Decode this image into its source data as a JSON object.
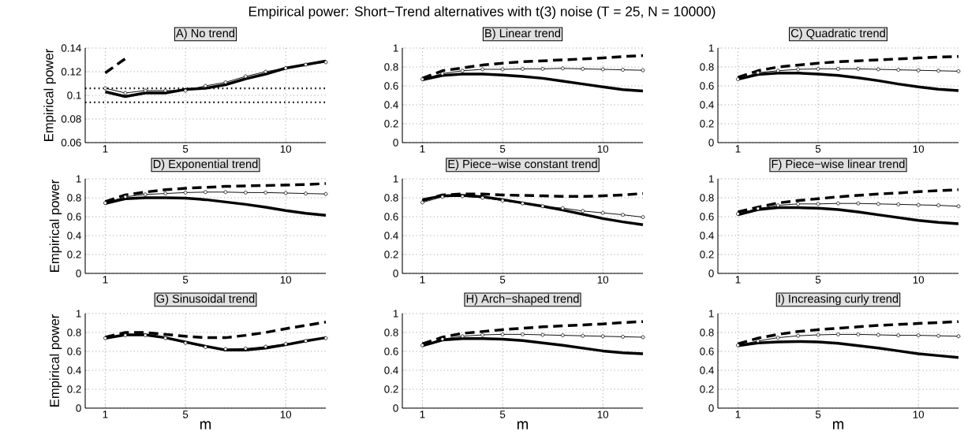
{
  "chart_data": [
    {
      "type": "line",
      "title": "A) No trend",
      "ylabel": "Empirical power",
      "annotations": [
        "Empirical power: Short−Trend alternatives with t(3) noise (T = 25, N = 10000)"
      ],
      "x": [
        1,
        2,
        3,
        4,
        5,
        6,
        7,
        8,
        9,
        10,
        11,
        12
      ],
      "xlim": [
        0,
        12
      ],
      "xticks": [
        1,
        5,
        10
      ],
      "ylim": [
        0.06,
        0.14
      ],
      "yticks": [
        0.06,
        0.08,
        0.1,
        0.12,
        0.14
      ],
      "grid": true,
      "ref_lines": [
        {
          "axis": "y",
          "value": 0.0941,
          "line_style": "dotted",
          "color": "#000000"
        },
        {
          "axis": "y",
          "value": 0.1059,
          "line_style": "dotted",
          "color": "#000000"
        }
      ],
      "series": [
        {
          "color": "#000000",
          "line_style": "dashed",
          "marker": "none",
          "values": [
            0.119,
            0.131,
            null,
            null,
            null,
            null,
            null,
            null,
            null,
            null,
            null,
            null
          ]
        },
        {
          "color": "#000000",
          "line_style": "solid",
          "marker": "circle",
          "values": [
            0.106,
            0.102,
            0.104,
            0.104,
            0.104,
            0.108,
            0.111,
            0.116,
            0.12,
            0.123,
            0.126,
            0.128
          ]
        },
        {
          "color": "#000000",
          "line_style": "solid",
          "marker": "none",
          "values": [
            0.103,
            0.099,
            0.102,
            0.102,
            0.105,
            0.106,
            0.109,
            0.114,
            0.118,
            0.123,
            0.126,
            0.129
          ]
        }
      ]
    },
    {
      "type": "line",
      "title": "B) Linear trend",
      "x": [
        1,
        2,
        3,
        4,
        5,
        6,
        7,
        8,
        9,
        10,
        11,
        12
      ],
      "xlim": [
        0,
        12
      ],
      "xticks": [
        1,
        5,
        10
      ],
      "ylim": [
        0,
        1
      ],
      "yticks": [
        0,
        0.2,
        0.4,
        0.6,
        0.8,
        1
      ],
      "grid": true,
      "series": [
        {
          "color": "#000000",
          "line_style": "dashed",
          "marker": "none",
          "values": [
            0.68,
            0.76,
            0.79,
            0.82,
            0.84,
            0.855,
            0.865,
            0.875,
            0.885,
            0.895,
            0.91,
            0.92
          ]
        },
        {
          "color": "#000000",
          "line_style": "solid",
          "marker": "circle",
          "values": [
            0.67,
            0.73,
            0.76,
            0.775,
            0.775,
            0.78,
            0.78,
            0.785,
            0.78,
            0.775,
            0.77,
            0.765
          ]
        },
        {
          "color": "#000000",
          "line_style": "solid",
          "marker": "none",
          "values": [
            0.665,
            0.71,
            0.725,
            0.725,
            0.715,
            0.7,
            0.68,
            0.65,
            0.62,
            0.59,
            0.56,
            0.545
          ]
        }
      ]
    },
    {
      "type": "line",
      "title": "C) Quadratic trend",
      "x": [
        1,
        2,
        3,
        4,
        5,
        6,
        7,
        8,
        9,
        10,
        11,
        12
      ],
      "xlim": [
        0,
        12
      ],
      "xticks": [
        1,
        5,
        10
      ],
      "ylim": [
        0,
        1
      ],
      "yticks": [
        0,
        0.2,
        0.4,
        0.6,
        0.8,
        1
      ],
      "grid": true,
      "series": [
        {
          "color": "#000000",
          "line_style": "dashed",
          "marker": "none",
          "values": [
            0.69,
            0.76,
            0.8,
            0.82,
            0.84,
            0.855,
            0.865,
            0.875,
            0.885,
            0.895,
            0.905,
            0.91
          ]
        },
        {
          "color": "#000000",
          "line_style": "solid",
          "marker": "circle",
          "values": [
            0.67,
            0.74,
            0.76,
            0.775,
            0.78,
            0.78,
            0.78,
            0.775,
            0.77,
            0.765,
            0.76,
            0.755
          ]
        },
        {
          "color": "#000000",
          "line_style": "solid",
          "marker": "none",
          "values": [
            0.67,
            0.72,
            0.735,
            0.735,
            0.725,
            0.71,
            0.685,
            0.655,
            0.62,
            0.59,
            0.565,
            0.55
          ]
        }
      ]
    },
    {
      "type": "line",
      "title": "D) Exponential trend",
      "ylabel": "Empirical power",
      "x": [
        1,
        2,
        3,
        4,
        5,
        6,
        7,
        8,
        9,
        10,
        11,
        12
      ],
      "xlim": [
        0,
        12
      ],
      "xticks": [
        1,
        5,
        10
      ],
      "ylim": [
        0,
        1
      ],
      "yticks": [
        0,
        0.2,
        0.4,
        0.6,
        0.8,
        1
      ],
      "grid": true,
      "series": [
        {
          "color": "#000000",
          "line_style": "dashed",
          "marker": "none",
          "values": [
            0.76,
            0.83,
            0.86,
            0.885,
            0.9,
            0.91,
            0.92,
            0.925,
            0.93,
            0.935,
            0.94,
            0.95
          ]
        },
        {
          "color": "#000000",
          "line_style": "solid",
          "marker": "circle",
          "values": [
            0.745,
            0.81,
            0.835,
            0.845,
            0.855,
            0.86,
            0.86,
            0.855,
            0.855,
            0.85,
            0.845,
            0.84
          ]
        },
        {
          "color": "#000000",
          "line_style": "solid",
          "marker": "none",
          "values": [
            0.74,
            0.79,
            0.8,
            0.8,
            0.795,
            0.78,
            0.755,
            0.73,
            0.7,
            0.665,
            0.635,
            0.615
          ]
        }
      ]
    },
    {
      "type": "line",
      "title": "E) Piece−wise constant trend",
      "x": [
        1,
        2,
        3,
        4,
        5,
        6,
        7,
        8,
        9,
        10,
        11,
        12
      ],
      "xlim": [
        0,
        12
      ],
      "xticks": [
        1,
        5,
        10
      ],
      "ylim": [
        0,
        1
      ],
      "yticks": [
        0,
        0.2,
        0.4,
        0.6,
        0.8,
        1
      ],
      "grid": true,
      "series": [
        {
          "color": "#000000",
          "line_style": "dashed",
          "marker": "none",
          "values": [
            0.77,
            0.83,
            0.84,
            0.84,
            0.83,
            0.825,
            0.82,
            0.815,
            0.815,
            0.82,
            0.83,
            0.845
          ]
        },
        {
          "color": "#000000",
          "line_style": "solid",
          "marker": "circle",
          "values": [
            0.75,
            0.81,
            0.815,
            0.8,
            0.77,
            0.74,
            0.71,
            0.69,
            0.66,
            0.64,
            0.62,
            0.595
          ]
        },
        {
          "color": "#000000",
          "line_style": "solid",
          "marker": "none",
          "values": [
            0.78,
            0.82,
            0.825,
            0.81,
            0.78,
            0.745,
            0.71,
            0.67,
            0.625,
            0.58,
            0.545,
            0.515
          ]
        }
      ]
    },
    {
      "type": "line",
      "title": "F) Piece−wise linear trend",
      "x": [
        1,
        2,
        3,
        4,
        5,
        6,
        7,
        8,
        9,
        10,
        11,
        12
      ],
      "xlim": [
        0,
        12
      ],
      "xticks": [
        1,
        5,
        10
      ],
      "ylim": [
        0,
        1
      ],
      "yticks": [
        0,
        0.2,
        0.4,
        0.6,
        0.8,
        1
      ],
      "grid": true,
      "series": [
        {
          "color": "#000000",
          "line_style": "dashed",
          "marker": "none",
          "values": [
            0.65,
            0.7,
            0.745,
            0.77,
            0.79,
            0.81,
            0.825,
            0.84,
            0.85,
            0.865,
            0.875,
            0.885
          ]
        },
        {
          "color": "#000000",
          "line_style": "solid",
          "marker": "circle",
          "values": [
            0.63,
            0.685,
            0.72,
            0.735,
            0.735,
            0.74,
            0.74,
            0.735,
            0.73,
            0.725,
            0.72,
            0.71
          ]
        },
        {
          "color": "#000000",
          "line_style": "solid",
          "marker": "none",
          "values": [
            0.62,
            0.675,
            0.695,
            0.695,
            0.69,
            0.675,
            0.65,
            0.62,
            0.59,
            0.56,
            0.54,
            0.525
          ]
        }
      ]
    },
    {
      "type": "line",
      "title": "G) Sinusoidal trend",
      "xlabel": "m",
      "ylabel": "Empirical power",
      "x": [
        1,
        2,
        3,
        4,
        5,
        6,
        7,
        8,
        9,
        10,
        11,
        12
      ],
      "xlim": [
        0,
        12
      ],
      "xticks": [
        1,
        5,
        10
      ],
      "ylim": [
        0,
        1
      ],
      "yticks": [
        0,
        0.2,
        0.4,
        0.6,
        0.8,
        1
      ],
      "grid": true,
      "series": [
        {
          "color": "#000000",
          "line_style": "dashed",
          "marker": "none",
          "values": [
            0.75,
            0.8,
            0.8,
            0.78,
            0.76,
            0.745,
            0.745,
            0.77,
            0.8,
            0.84,
            0.875,
            0.91
          ]
        },
        {
          "color": "#000000",
          "line_style": "solid",
          "marker": "circle",
          "values": [
            0.74,
            0.77,
            0.77,
            0.74,
            0.69,
            0.645,
            0.625,
            0.63,
            0.65,
            0.68,
            0.71,
            0.74
          ]
        },
        {
          "color": "#000000",
          "line_style": "solid",
          "marker": "none",
          "values": [
            0.74,
            0.775,
            0.775,
            0.745,
            0.7,
            0.655,
            0.615,
            0.615,
            0.635,
            0.67,
            0.71,
            0.745
          ]
        }
      ]
    },
    {
      "type": "line",
      "title": "H) Arch−shaped trend",
      "xlabel": "m",
      "x": [
        1,
        2,
        3,
        4,
        5,
        6,
        7,
        8,
        9,
        10,
        11,
        12
      ],
      "xlim": [
        0,
        12
      ],
      "xticks": [
        1,
        5,
        10
      ],
      "ylim": [
        0,
        1
      ],
      "yticks": [
        0,
        0.2,
        0.4,
        0.6,
        0.8,
        1
      ],
      "grid": true,
      "series": [
        {
          "color": "#000000",
          "line_style": "dashed",
          "marker": "none",
          "values": [
            0.68,
            0.75,
            0.79,
            0.81,
            0.83,
            0.845,
            0.86,
            0.87,
            0.88,
            0.89,
            0.905,
            0.915
          ]
        },
        {
          "color": "#000000",
          "line_style": "solid",
          "marker": "circle",
          "values": [
            0.665,
            0.73,
            0.76,
            0.775,
            0.78,
            0.78,
            0.775,
            0.77,
            0.765,
            0.76,
            0.755,
            0.75
          ]
        },
        {
          "color": "#000000",
          "line_style": "solid",
          "marker": "none",
          "values": [
            0.66,
            0.72,
            0.735,
            0.735,
            0.73,
            0.715,
            0.69,
            0.665,
            0.635,
            0.605,
            0.585,
            0.575
          ]
        }
      ]
    },
    {
      "type": "line",
      "title": "I) Increasing curly trend",
      "xlabel": "m",
      "x": [
        1,
        2,
        3,
        4,
        5,
        6,
        7,
        8,
        9,
        10,
        11,
        12
      ],
      "xlim": [
        0,
        12
      ],
      "xticks": [
        1,
        5,
        10
      ],
      "ylim": [
        0,
        1
      ],
      "yticks": [
        0,
        0.2,
        0.4,
        0.6,
        0.8,
        1
      ],
      "grid": true,
      "series": [
        {
          "color": "#000000",
          "line_style": "dashed",
          "marker": "none",
          "values": [
            0.68,
            0.74,
            0.78,
            0.81,
            0.83,
            0.845,
            0.86,
            0.875,
            0.885,
            0.895,
            0.905,
            0.915
          ]
        },
        {
          "color": "#000000",
          "line_style": "solid",
          "marker": "circle",
          "values": [
            0.665,
            0.71,
            0.745,
            0.765,
            0.775,
            0.78,
            0.78,
            0.775,
            0.77,
            0.77,
            0.765,
            0.76
          ]
        },
        {
          "color": "#000000",
          "line_style": "solid",
          "marker": "none",
          "values": [
            0.66,
            0.69,
            0.7,
            0.705,
            0.7,
            0.685,
            0.66,
            0.635,
            0.605,
            0.575,
            0.555,
            0.535
          ]
        }
      ]
    }
  ]
}
